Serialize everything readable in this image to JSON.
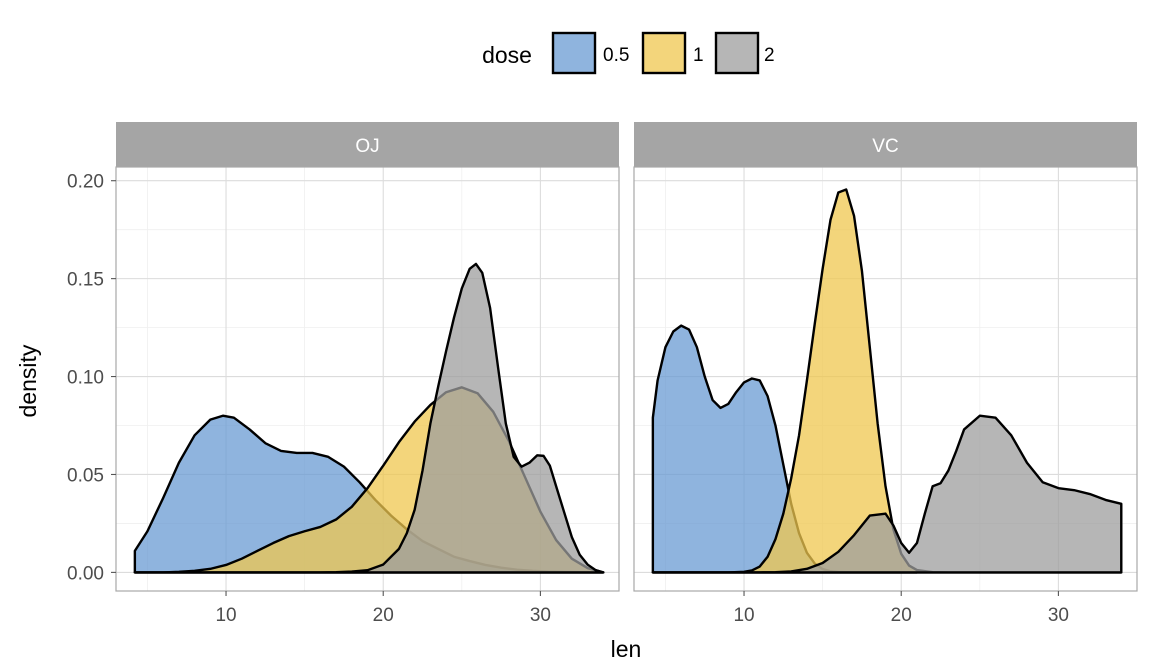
{
  "chart_data": {
    "type": "area",
    "subtype": "density, faceted",
    "xlabel": "len",
    "ylabel": "density",
    "legend": {
      "title": "dose",
      "position": "top",
      "entries": [
        {
          "label": "0.5",
          "color": "#6A9BD3"
        },
        {
          "label": "1",
          "color": "#EFC74F"
        },
        {
          "label": "2",
          "color": "#9E9E9E"
        }
      ]
    },
    "fill_opacity": 0.75,
    "grid": true,
    "xlim": [
      3,
      35
    ],
    "ylim": [
      -0.0095,
      0.207
    ],
    "x_ticks": [
      10,
      20,
      30
    ],
    "x_tick_labels": [
      "10",
      "20",
      "30"
    ],
    "y_ticks": [
      0,
      0.05,
      0.1,
      0.15,
      0.2
    ],
    "y_tick_labels": [
      "0.00",
      "0.05",
      "0.10",
      "0.15",
      "0.20"
    ],
    "panels": [
      {
        "label": "OJ",
        "series": [
          {
            "name": "0.5",
            "x": [
              4.2,
              5,
              6,
              7,
              8,
              9,
              9.8,
              10.5,
              11.5,
              12.5,
              13.5,
              14.5,
              15.5,
              16.5,
              17.5,
              18.5,
              19.5,
              20.5,
              21.5,
              22.5,
              23.5,
              24.5,
              25.5,
              26.5,
              27.5,
              28.5,
              29.5,
              30.5,
              31.5,
              32.5,
              33.5,
              34
            ],
            "y": [
              0.011,
              0.021,
              0.038,
              0.056,
              0.07,
              0.078,
              0.08,
              0.079,
              0.073,
              0.066,
              0.062,
              0.061,
              0.061,
              0.059,
              0.054,
              0.046,
              0.037,
              0.029,
              0.022,
              0.016,
              0.012,
              0.008,
              0.0058,
              0.0038,
              0.0024,
              0.0014,
              0.0008,
              0.0004,
              0.0002,
              0.0001,
              0,
              0
            ]
          },
          {
            "name": "1",
            "x": [
              4.2,
              6,
              7,
              8,
              9,
              10,
              11,
              12,
              13,
              14,
              15,
              16,
              17,
              18,
              19,
              20,
              21,
              22,
              23,
              24,
              25,
              26,
              27,
              28,
              29,
              30,
              31,
              32,
              33,
              34
            ],
            "y": [
              0,
              0,
              0.0003,
              0.0008,
              0.0018,
              0.0038,
              0.007,
              0.011,
              0.015,
              0.0185,
              0.021,
              0.0232,
              0.027,
              0.0335,
              0.043,
              0.0545,
              0.0665,
              0.077,
              0.0855,
              0.092,
              0.0945,
              0.0915,
              0.082,
              0.067,
              0.049,
              0.031,
              0.0165,
              0.007,
              0.0022,
              0
            ]
          },
          {
            "name": "2",
            "x": [
              4.2,
              16,
              17,
              18,
              19,
              20,
              21,
              21.5,
              22,
              22.5,
              23,
              23.5,
              24,
              24.5,
              25,
              25.5,
              25.9,
              26.3,
              26.8,
              27.3,
              27.8,
              28.3,
              28.8,
              29.3,
              29.8,
              30.2,
              30.6,
              31,
              31.5,
              32,
              32.5,
              33,
              33.5,
              34
            ],
            "y": [
              0,
              0,
              0.0001,
              0.0004,
              0.0011,
              0.004,
              0.012,
              0.02,
              0.032,
              0.052,
              0.076,
              0.095,
              0.113,
              0.13,
              0.145,
              0.155,
              0.1575,
              0.153,
              0.135,
              0.105,
              0.076,
              0.059,
              0.054,
              0.056,
              0.0598,
              0.0595,
              0.0545,
              0.044,
              0.031,
              0.018,
              0.009,
              0.004,
              0.0012,
              0
            ]
          }
        ]
      },
      {
        "label": "VC",
        "series": [
          {
            "name": "0.5",
            "x": [
              4.2,
              4.5,
              5,
              5.5,
              6,
              6.5,
              7,
              7.5,
              8,
              8.5,
              9,
              9.5,
              10,
              10.5,
              11,
              11.5,
              12,
              12.5,
              13,
              13.5,
              14,
              14.5,
              15,
              15.5,
              16,
              17,
              18,
              19,
              20,
              21
            ],
            "y": [
              0.079,
              0.098,
              0.115,
              0.123,
              0.126,
              0.124,
              0.115,
              0.1,
              0.088,
              0.084,
              0.086,
              0.092,
              0.097,
              0.099,
              0.098,
              0.09,
              0.075,
              0.055,
              0.035,
              0.02,
              0.01,
              0.0045,
              0.0017,
              0.0006,
              0.0002,
              0,
              0,
              0,
              0,
              0
            ]
          },
          {
            "name": "1",
            "x": [
              4.2,
              9,
              10,
              10.5,
              11,
              11.5,
              12,
              12.5,
              13,
              13.5,
              14,
              14.5,
              15,
              15.5,
              16,
              16.5,
              17,
              17.5,
              18,
              18.5,
              19,
              19.5,
              20,
              20.5,
              21,
              22,
              23,
              24,
              34
            ],
            "y": [
              0,
              0,
              0.0003,
              0.001,
              0.003,
              0.008,
              0.017,
              0.03,
              0.048,
              0.07,
              0.098,
              0.127,
              0.155,
              0.18,
              0.194,
              0.1955,
              0.182,
              0.154,
              0.115,
              0.076,
              0.044,
              0.022,
              0.0095,
              0.0035,
              0.0012,
              0.0001,
              0,
              0,
              0
            ]
          },
          {
            "name": "2",
            "x": [
              4.2,
              11,
              12,
              13,
              14,
              15,
              16,
              17,
              18,
              19,
              19.5,
              20,
              20.5,
              21,
              21.5,
              22,
              22.5,
              23,
              23.5,
              24,
              25,
              26,
              27,
              28,
              29,
              30,
              31,
              32,
              33,
              34
            ],
            "y": [
              0,
              0,
              0.0001,
              0.0005,
              0.0018,
              0.0048,
              0.0105,
              0.019,
              0.029,
              0.03,
              0.024,
              0.015,
              0.01,
              0.015,
              0.03,
              0.044,
              0.0455,
              0.052,
              0.062,
              0.073,
              0.08,
              0.079,
              0.07,
              0.056,
              0.046,
              0.043,
              0.042,
              0.04,
              0.037,
              0.035
            ]
          }
        ]
      }
    ]
  }
}
